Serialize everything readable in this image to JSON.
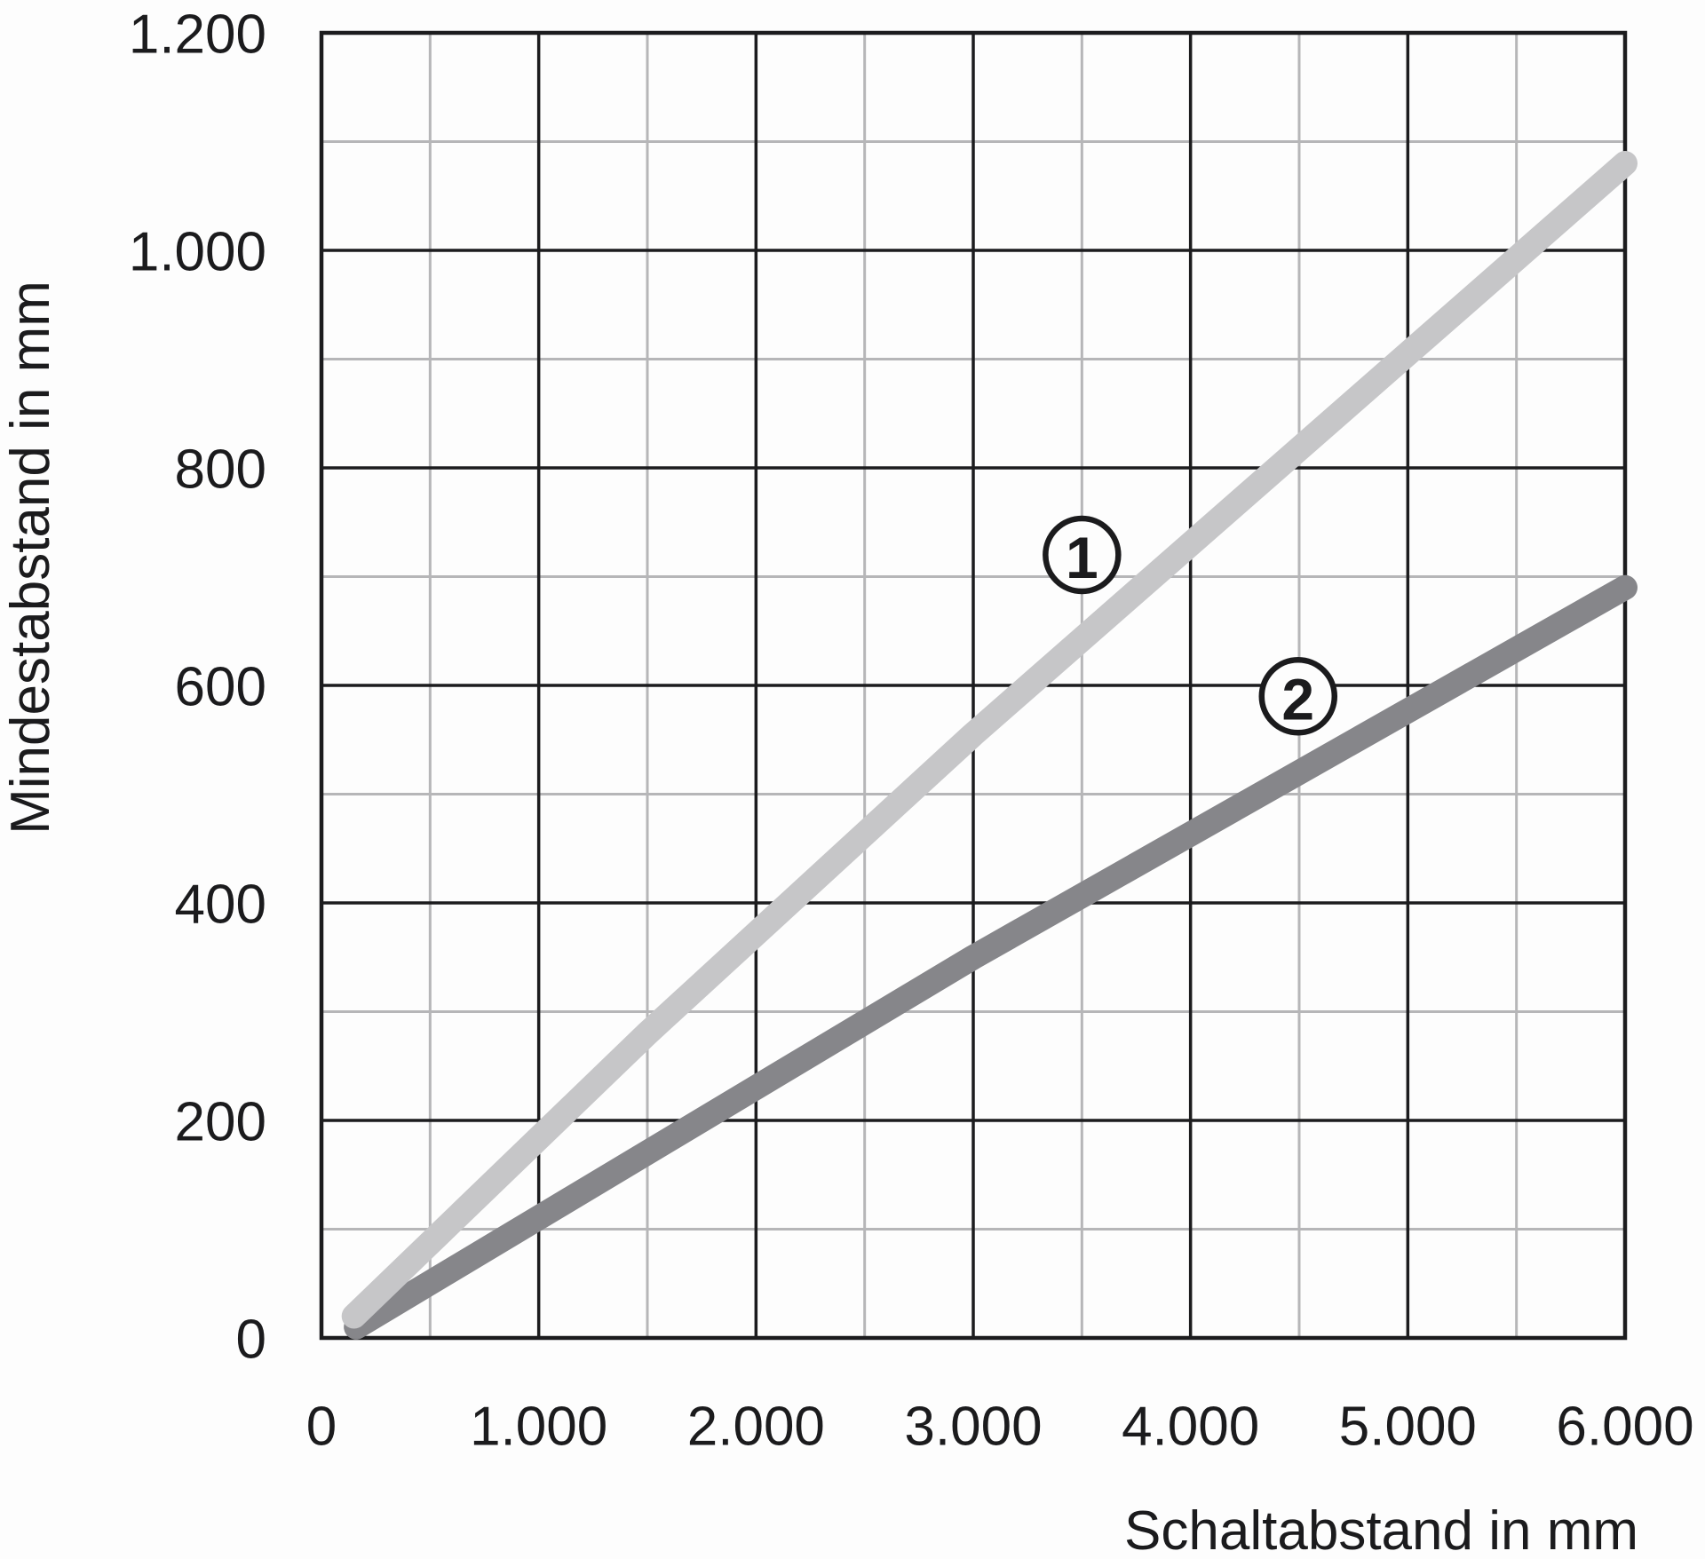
{
  "chart_data": {
    "type": "line",
    "title": "",
    "xlabel": "Schaltabstand in mm",
    "ylabel": "Mindestabstand in mm",
    "xlim": [
      0,
      6000
    ],
    "ylim": [
      0,
      1200
    ],
    "x_major_step": 1000,
    "x_minor_step": 500,
    "y_major_step": 200,
    "y_minor_step": 100,
    "grid": true,
    "legend_position": "inline-circled-numbers",
    "x_tick_labels": [
      "0",
      "1.000",
      "2.000",
      "3.000",
      "4.000",
      "5.000",
      "6.000"
    ],
    "y_tick_labels": [
      "0",
      "200",
      "400",
      "600",
      "800",
      "1.000",
      "1.200"
    ],
    "series": [
      {
        "name": "1",
        "color": "#c6c6c8",
        "stroke_width": 28,
        "points": [
          [
            150,
            20
          ],
          [
            1500,
            280
          ],
          [
            3000,
            555
          ],
          [
            5000,
            905
          ],
          [
            6000,
            1080
          ]
        ],
        "marker": {
          "label": "1",
          "x": 3500,
          "y": 720
        }
      },
      {
        "name": "2",
        "color": "#86868a",
        "stroke_width": 28,
        "points": [
          [
            160,
            10
          ],
          [
            3000,
            350
          ],
          [
            6000,
            690
          ]
        ],
        "marker": {
          "label": "2",
          "x": 4495,
          "y": 590
        }
      }
    ],
    "colors": {
      "major_grid": "#1c1c1e",
      "minor_grid": "#b6b6b8",
      "text": "#1b1b1d",
      "background": "#fdfdfd"
    }
  }
}
